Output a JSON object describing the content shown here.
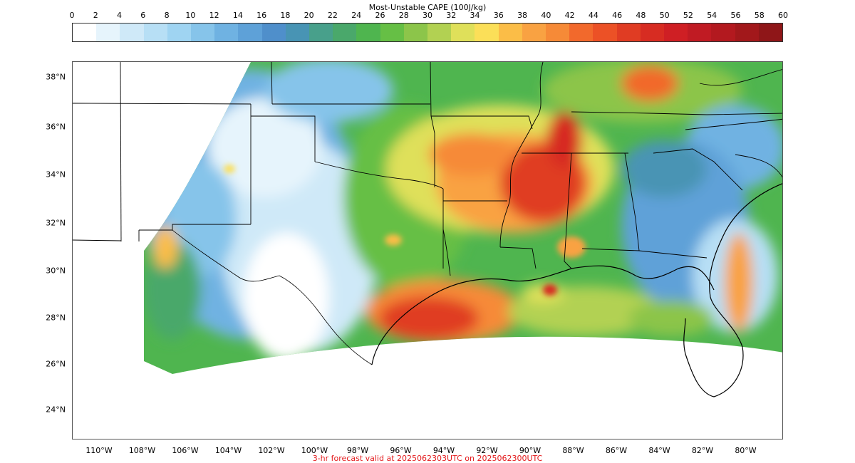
{
  "colorbar": {
    "title": "Most-Unstable CAPE (100J/kg)",
    "ticks": [
      "0",
      "2",
      "4",
      "6",
      "8",
      "10",
      "12",
      "14",
      "16",
      "18",
      "20",
      "22",
      "24",
      "26",
      "28",
      "30",
      "32",
      "34",
      "36",
      "38",
      "40",
      "42",
      "44",
      "46",
      "48",
      "50",
      "52",
      "54",
      "56",
      "58",
      "60"
    ],
    "colors": [
      "#ffffff",
      "#e6f4fc",
      "#cfe9f8",
      "#b7dff5",
      "#9fd4f2",
      "#86c4ea",
      "#6fb2e2",
      "#5ea1d8",
      "#4f8fcb",
      "#4894b4",
      "#48a08b",
      "#4aa86b",
      "#4fb54f",
      "#66bf45",
      "#8cc54a",
      "#b2d152",
      "#dfe05a",
      "#fbdf58",
      "#fbbd47",
      "#f9a242",
      "#f68a37",
      "#f2692c",
      "#ec5126",
      "#e03c23",
      "#d72c22",
      "#cf1f24",
      "#c01b23",
      "#b3191f",
      "#a2181b",
      "#8f1618"
    ]
  },
  "axes": {
    "lat_labels": [
      "38°N",
      "36°N",
      "34°N",
      "32°N",
      "30°N",
      "28°N",
      "26°N",
      "24°N"
    ],
    "lon_labels": [
      "110°W",
      "108°W",
      "106°W",
      "104°W",
      "102°W",
      "100°W",
      "98°W",
      "96°W",
      "94°W",
      "92°W",
      "90°W",
      "88°W",
      "86°W",
      "84°W",
      "82°W",
      "80°W"
    ]
  },
  "footer": "3-hr forecast valid at 2025062303UTC on 2025062300UTC"
}
